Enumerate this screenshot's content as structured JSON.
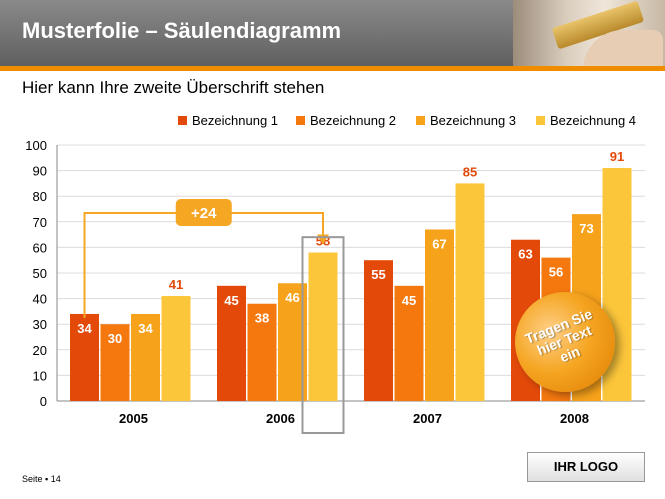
{
  "header": {
    "title": "Musterfolie – Säulendiagramm"
  },
  "subtitle": "Hier kann Ihre zweite Überschrift stehen",
  "chart_data": {
    "type": "bar",
    "categories": [
      "2005",
      "2006",
      "2007",
      "2008"
    ],
    "series": [
      {
        "name": "Bezeichnung 1",
        "values": [
          34,
          45,
          55,
          63
        ],
        "color": "#e34a0a",
        "label_color": "#ffffff"
      },
      {
        "name": "Bezeichnung 2",
        "values": [
          30,
          38,
          45,
          56
        ],
        "color": "#f5780f",
        "label_color": "#ffffff"
      },
      {
        "name": "Bezeichnung 3",
        "values": [
          34,
          46,
          67,
          73
        ],
        "color": "#f7a21b",
        "label_color": "#ffffff"
      },
      {
        "name": "Bezeichnung 4",
        "values": [
          41,
          58,
          85,
          91
        ],
        "color": "#fcc63b",
        "label_color": "#e34a0a"
      }
    ],
    "ylim": [
      0,
      100
    ],
    "yticks": [
      0,
      10,
      20,
      30,
      40,
      50,
      60,
      70,
      80,
      90,
      100
    ],
    "grid": true,
    "legend": "top-right",
    "annotation": {
      "text": "+24",
      "from": {
        "series": 0,
        "category": 0
      },
      "to": {
        "series": 3,
        "category": 1
      }
    }
  },
  "bubble": {
    "text": "Tragen Sie\nhier Text\nein"
  },
  "footer": {
    "page": "Seite ▪ 14",
    "logo": "IHR LOGO"
  }
}
